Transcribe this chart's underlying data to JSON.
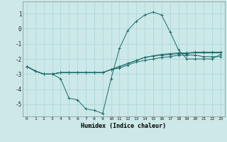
{
  "xlabel": "Humidex (Indice chaleur)",
  "background_color": "#cce8e8",
  "grid_color": "#aad4d4",
  "line_color": "#1a6b6b",
  "xlim": [
    -0.5,
    23.5
  ],
  "ylim": [
    -5.8,
    1.8
  ],
  "yticks": [
    -5,
    -4,
    -3,
    -2,
    -1,
    0,
    1
  ],
  "xticks": [
    0,
    1,
    2,
    3,
    4,
    5,
    6,
    7,
    8,
    9,
    10,
    11,
    12,
    13,
    14,
    15,
    16,
    17,
    18,
    19,
    20,
    21,
    22,
    23
  ],
  "x": [
    0,
    1,
    2,
    3,
    4,
    5,
    6,
    7,
    8,
    9,
    10,
    11,
    12,
    13,
    14,
    15,
    16,
    17,
    18,
    19,
    20,
    21,
    22,
    23
  ],
  "series": [
    [
      -2.5,
      -2.8,
      -3.0,
      -3.0,
      -3.3,
      -4.6,
      -4.7,
      -5.3,
      -5.4,
      -5.6,
      -3.3,
      -1.3,
      -0.1,
      0.5,
      0.9,
      1.1,
      0.9,
      -0.2,
      -1.4,
      -2.0,
      -2.0,
      -2.0,
      -2.0,
      -1.7
    ],
    [
      -2.5,
      -2.8,
      -3.0,
      -3.0,
      -2.9,
      -2.9,
      -2.9,
      -2.9,
      -2.9,
      -2.9,
      -2.7,
      -2.6,
      -2.4,
      -2.2,
      -2.1,
      -2.0,
      -1.9,
      -1.85,
      -1.75,
      -1.75,
      -1.75,
      -1.85,
      -1.85,
      -1.85
    ],
    [
      -2.5,
      -2.8,
      -3.0,
      -3.0,
      -2.9,
      -2.9,
      -2.9,
      -2.9,
      -2.9,
      -2.9,
      -2.7,
      -2.5,
      -2.3,
      -2.1,
      -1.9,
      -1.8,
      -1.75,
      -1.7,
      -1.65,
      -1.65,
      -1.6,
      -1.6,
      -1.6,
      -1.6
    ],
    [
      -2.5,
      -2.8,
      -3.0,
      -3.0,
      -2.9,
      -2.9,
      -2.9,
      -2.9,
      -2.9,
      -2.9,
      -2.7,
      -2.5,
      -2.3,
      -2.1,
      -1.9,
      -1.8,
      -1.7,
      -1.65,
      -1.6,
      -1.6,
      -1.55,
      -1.55,
      -1.55,
      -1.55
    ]
  ]
}
